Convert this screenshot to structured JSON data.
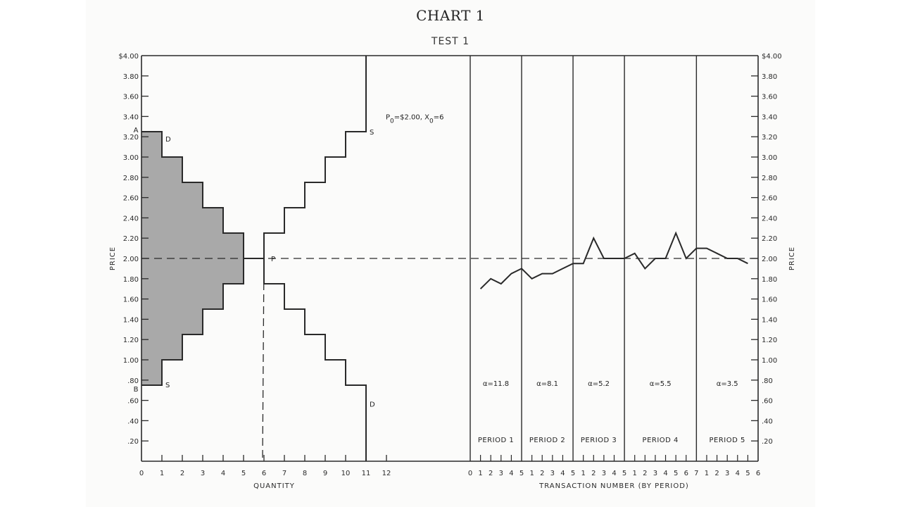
{
  "title": "CHART 1",
  "subtitle": "TEST 1",
  "colors": {
    "ink": "#2a2a2a",
    "shade": "#a9a9a9",
    "paper": "#fbfbfa"
  },
  "chart_data": [
    {
      "type": "line",
      "subtype": "step supply-demand schedule",
      "panel": "left",
      "xlabel": "QUANTITY",
      "ylabel": "PRICE",
      "xlim": [
        0,
        12
      ],
      "ylim": [
        0,
        4.0
      ],
      "x_ticks": [
        "0",
        "1",
        "2",
        "3",
        "4",
        "5",
        "6",
        "7",
        "8",
        "9",
        "10",
        "11",
        "12"
      ],
      "y_ticks": [
        "$4.00",
        "3.80",
        "3.60",
        "3.40",
        "3.20",
        "3.00",
        "2.80",
        "2.60",
        "2.40",
        "2.20",
        "2.00",
        "1.80",
        "1.60",
        "1.40",
        "1.20",
        "1.00",
        ".80",
        ".60",
        ".40",
        ".20"
      ],
      "series": [
        {
          "name": "D (demand)",
          "label_start": "A",
          "label": "D",
          "steps": [
            {
              "q": [
                0,
                1
              ],
              "p": 3.25
            },
            {
              "q": [
                1,
                2
              ],
              "p": 3.0
            },
            {
              "q": [
                2,
                3
              ],
              "p": 2.75
            },
            {
              "q": [
                3,
                4
              ],
              "p": 2.5
            },
            {
              "q": [
                4,
                5
              ],
              "p": 2.25
            },
            {
              "q": [
                5,
                6
              ],
              "p": 2.0
            },
            {
              "q": [
                6,
                7
              ],
              "p": 1.75
            },
            {
              "q": [
                7,
                8
              ],
              "p": 1.5
            },
            {
              "q": [
                8,
                9
              ],
              "p": 1.25
            },
            {
              "q": [
                9,
                10
              ],
              "p": 1.0
            },
            {
              "q": [
                10,
                11
              ],
              "p": 0.75
            }
          ]
        },
        {
          "name": "S (supply)",
          "label_start": "B",
          "label": "S",
          "steps": [
            {
              "q": [
                0,
                1
              ],
              "p": 0.75
            },
            {
              "q": [
                1,
                2
              ],
              "p": 1.0
            },
            {
              "q": [
                2,
                3
              ],
              "p": 1.25
            },
            {
              "q": [
                3,
                4
              ],
              "p": 1.5
            },
            {
              "q": [
                4,
                5
              ],
              "p": 1.75
            },
            {
              "q": [
                5,
                6
              ],
              "p": 2.0
            },
            {
              "q": [
                6,
                7
              ],
              "p": 2.25
            },
            {
              "q": [
                7,
                8
              ],
              "p": 2.5
            },
            {
              "q": [
                8,
                9
              ],
              "p": 2.75
            },
            {
              "q": [
                9,
                10
              ],
              "p": 3.0
            },
            {
              "q": [
                10,
                11
              ],
              "p": 3.25
            }
          ]
        }
      ],
      "equilibrium": {
        "label": "P",
        "price": 2.0,
        "quantity": 6
      },
      "annotations": [
        "P0=$2.00, X0=6"
      ],
      "shaded_region": "area between D and S for quantities 0-5 (surplus)"
    },
    {
      "type": "line",
      "panel": "right",
      "xlabel": "TRANSACTION NUMBER (BY PERIOD)",
      "ylabel": "PRICE",
      "ylim": [
        0,
        4.0
      ],
      "reference_line": {
        "price": 2.0,
        "style": "dashed"
      },
      "periods": [
        {
          "name": "PERIOD 1",
          "alpha": "α=11.8",
          "transactions": [
            1,
            2,
            3,
            4,
            5
          ],
          "prices": [
            1.7,
            1.8,
            1.75,
            1.85,
            1.9
          ]
        },
        {
          "name": "PERIOD 2",
          "alpha": "α=8.1",
          "transactions": [
            1,
            2,
            3,
            4,
            5
          ],
          "prices": [
            1.9,
            1.8,
            1.85,
            1.85,
            1.9
          ]
        },
        {
          "name": "PERIOD 3",
          "alpha": "α=5.2",
          "transactions": [
            1,
            2,
            3,
            4,
            5
          ],
          "prices": [
            1.95,
            1.95,
            2.2,
            2.0,
            2.0
          ]
        },
        {
          "name": "PERIOD 4",
          "alpha": "α=5.5",
          "transactions": [
            1,
            2,
            3,
            4,
            5,
            6,
            7
          ],
          "prices": [
            2.0,
            2.05,
            1.9,
            2.0,
            2.0,
            2.25,
            2.0
          ]
        },
        {
          "name": "PERIOD 5",
          "alpha": "α=3.5",
          "transactions": [
            1,
            2,
            3,
            4,
            5,
            6
          ],
          "prices": [
            2.1,
            2.1,
            2.05,
            2.0,
            2.0,
            1.95
          ]
        }
      ],
      "x_tick_labels": [
        "0",
        "1",
        "2",
        "3",
        "4",
        "5",
        "1",
        "2",
        "3",
        "4",
        "5",
        "1",
        "2",
        "3",
        "4",
        "5",
        "1",
        "2",
        "3",
        "4",
        "5",
        "6",
        "7",
        "1",
        "2",
        "3",
        "4",
        "5",
        "6"
      ]
    }
  ],
  "labels": {
    "left_ylabel": "PRICE",
    "right_ylabel": "PRICE",
    "left_xlabel": "QUANTITY",
    "right_xlabel": "TRANSACTION NUMBER (BY PERIOD)",
    "point_A": "A",
    "point_B": "B",
    "label_D_top": "D",
    "label_S_bottom": "S",
    "label_S_top": "S",
    "label_D_bottom": "D",
    "label_P": "P",
    "eq_note": "P",
    "eq_note_sub": "0",
    "eq_note_mid": "=$2.00,  X",
    "eq_note_sub2": "0",
    "eq_note_end": "=6"
  }
}
